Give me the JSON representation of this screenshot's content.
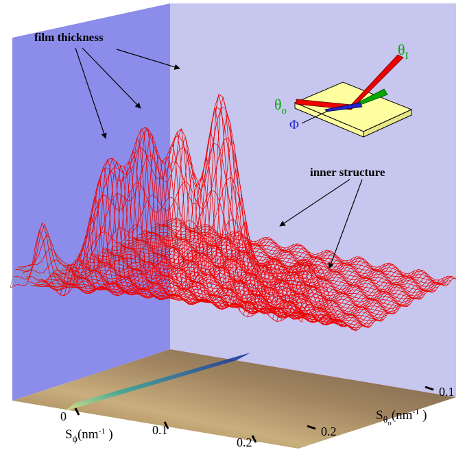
{
  "annotations": {
    "film_thickness": "film thickness",
    "inner_structure": "inner structure"
  },
  "inset": {
    "theta_i": {
      "base": "θ",
      "sub": "I"
    },
    "theta_o": {
      "base": "θ",
      "sub": "o"
    },
    "phi": "Φ"
  },
  "axes": {
    "s_phi": {
      "label": {
        "base": "S",
        "sub": "ϕ",
        "unit": "(nm",
        "exp": "-1",
        "close": " )"
      },
      "ticks": [
        "0",
        "0.1",
        "0.2"
      ]
    },
    "s_theta_o": {
      "label": {
        "base": "S",
        "sub": "θ",
        "subsub": "o",
        "unit": "(nm",
        "exp": "-1",
        "close": " )"
      },
      "ticks": [
        "0.1",
        "0.2"
      ]
    }
  }
}
